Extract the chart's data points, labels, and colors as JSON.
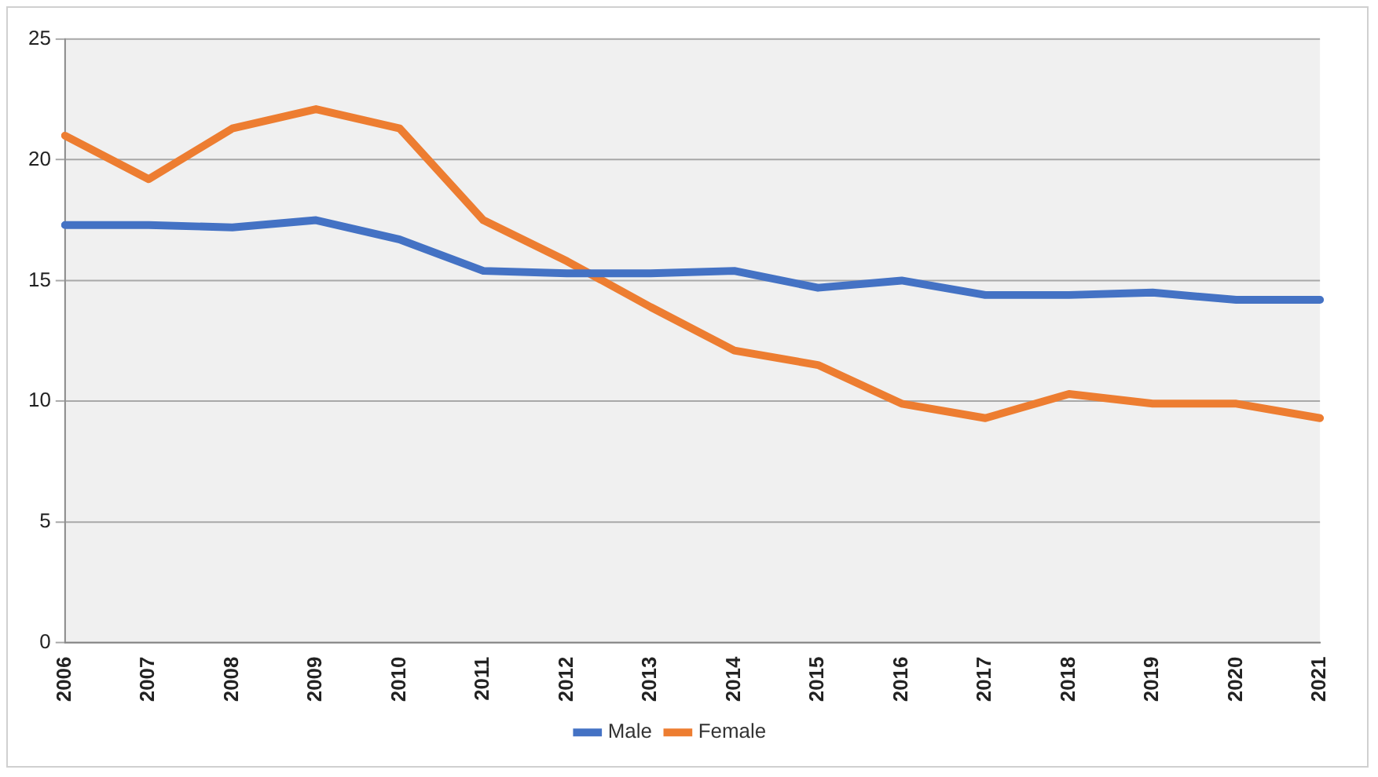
{
  "chart_data": {
    "type": "line",
    "categories": [
      "2006",
      "2007",
      "2008",
      "2009",
      "2010",
      "2011",
      "2012",
      "2013",
      "2014",
      "2015",
      "2016",
      "2017",
      "2018",
      "2019",
      "2020",
      "2021"
    ],
    "series": [
      {
        "name": "Male",
        "color": "#4472c4",
        "values": [
          17.3,
          17.3,
          17.2,
          17.5,
          16.7,
          15.4,
          15.3,
          15.3,
          15.4,
          14.7,
          15.0,
          14.4,
          14.4,
          14.5,
          14.2,
          14.2
        ]
      },
      {
        "name": "Female",
        "color": "#ed7d31",
        "values": [
          21.0,
          19.2,
          21.3,
          22.1,
          21.3,
          17.5,
          15.8,
          13.9,
          12.1,
          11.5,
          9.9,
          9.3,
          10.3,
          9.9,
          9.9,
          9.3
        ]
      }
    ],
    "ylim": [
      0,
      25
    ],
    "yticks": [
      0,
      5,
      10,
      15,
      20,
      25
    ],
    "grid": "y",
    "legend": "bottom",
    "marker": "none",
    "line_style": "solid"
  }
}
